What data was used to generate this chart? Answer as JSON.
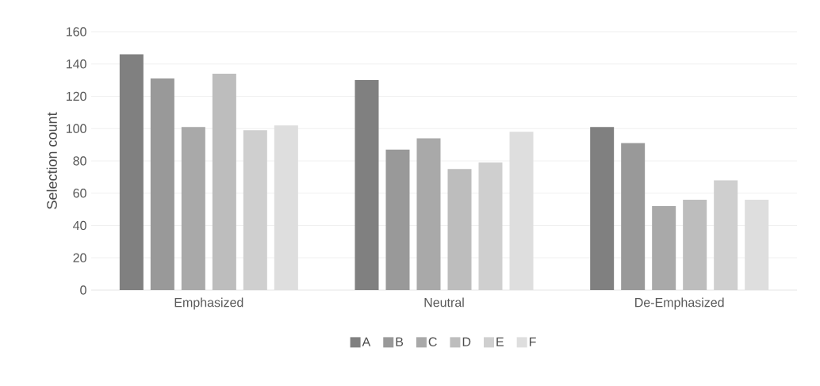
{
  "chart_data": {
    "type": "bar",
    "ylabel": "Selection count",
    "categories": [
      "Emphasized",
      "Neutral",
      "De-Emphasized"
    ],
    "series": [
      {
        "name": "A",
        "color": "#808080",
        "values": [
          146,
          130,
          101
        ]
      },
      {
        "name": "B",
        "color": "#999999",
        "values": [
          131,
          87,
          91
        ]
      },
      {
        "name": "C",
        "color": "#a9a9a9",
        "values": [
          101,
          94,
          52
        ]
      },
      {
        "name": "D",
        "color": "#bdbdbd",
        "values": [
          134,
          75,
          56
        ]
      },
      {
        "name": "E",
        "color": "#cfcfcf",
        "values": [
          99,
          79,
          68
        ]
      },
      {
        "name": "F",
        "color": "#dedede",
        "values": [
          102,
          98,
          56
        ]
      }
    ],
    "ylim": [
      0,
      160
    ],
    "yticks": [
      0,
      20,
      40,
      60,
      80,
      100,
      120,
      140,
      160
    ],
    "grid": "y",
    "legend": "bottom"
  }
}
